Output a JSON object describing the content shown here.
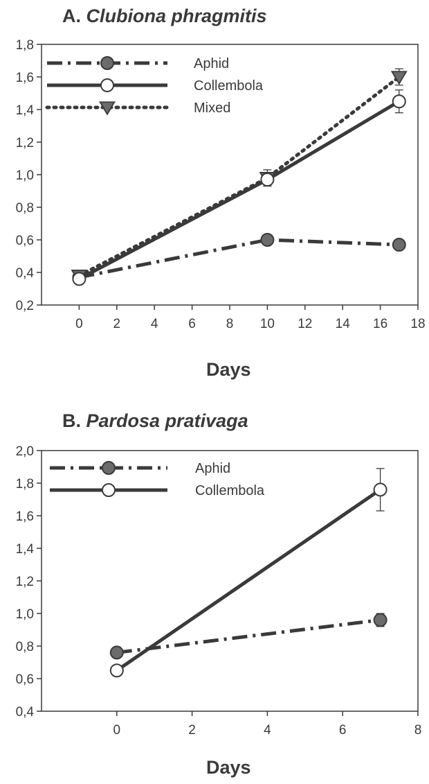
{
  "chart_data": [
    {
      "type": "line",
      "title_prefix": "A.",
      "title_species": "Clubiona phragmitis",
      "xlabel": "Days",
      "ylabel": "",
      "xlim": [
        -2,
        18
      ],
      "ylim": [
        0.2,
        1.8
      ],
      "xticks": [
        "0",
        "2",
        "4",
        "6",
        "8",
        "10",
        "12",
        "14",
        "16",
        "18"
      ],
      "xtick_values": [
        0,
        2,
        4,
        6,
        8,
        10,
        12,
        14,
        16,
        18
      ],
      "yticks": [
        "0,2",
        "0,4",
        "0,6",
        "0,8",
        "1,0",
        "1,2",
        "1,4",
        "1,6",
        "1,8"
      ],
      "ytick_values": [
        0.2,
        0.4,
        0.6,
        0.8,
        1.0,
        1.2,
        1.4,
        1.6,
        1.8
      ],
      "grid": false,
      "legend_placement": "top-left",
      "series": [
        {
          "name": "Aphid",
          "style": "dashdot",
          "marker": "circle-filled",
          "x": [
            0,
            10,
            17
          ],
          "y": [
            0.37,
            0.6,
            0.57
          ],
          "err": [
            0.01,
            0.01,
            0.01
          ]
        },
        {
          "name": "Collembola",
          "style": "solid",
          "marker": "circle-open",
          "x": [
            0,
            10,
            17
          ],
          "y": [
            0.36,
            0.97,
            1.45
          ],
          "err": [
            0.01,
            0.04,
            0.07
          ]
        },
        {
          "name": "Mixed",
          "style": "dotted",
          "marker": "triangle-down-filled",
          "x": [
            0,
            10,
            17
          ],
          "y": [
            0.38,
            0.98,
            1.6
          ],
          "err": [
            0.01,
            0.05,
            0.05
          ]
        }
      ]
    },
    {
      "type": "line",
      "title_prefix": "B.",
      "title_species": "Pardosa prativaga",
      "xlabel": "Days",
      "ylabel": "",
      "xlim": [
        -2,
        8
      ],
      "ylim": [
        0.4,
        2.0
      ],
      "xticks": [
        "0",
        "2",
        "4",
        "6",
        "8"
      ],
      "xtick_values": [
        0,
        2,
        4,
        6,
        8
      ],
      "yticks": [
        "0,4",
        "0,6",
        "0,8",
        "1,0",
        "1,2",
        "1,4",
        "1,6",
        "1,8",
        "2,0"
      ],
      "ytick_values": [
        0.4,
        0.6,
        0.8,
        1.0,
        1.2,
        1.4,
        1.6,
        1.8,
        2.0
      ],
      "grid": false,
      "legend_placement": "top-left",
      "series": [
        {
          "name": "Aphid",
          "style": "dashdot",
          "marker": "circle-filled",
          "x": [
            0,
            7
          ],
          "y": [
            0.76,
            0.96
          ],
          "err": [
            0.01,
            0.04
          ]
        },
        {
          "name": "Collembola",
          "style": "solid",
          "marker": "circle-open",
          "x": [
            0,
            7
          ],
          "y": [
            0.65,
            1.76
          ],
          "err": [
            0.01,
            0.13
          ]
        }
      ]
    }
  ],
  "colors": {
    "ink": "#3a3a3a",
    "marker_fill": "#6b6b6b",
    "open_fill": "#ffffff"
  }
}
